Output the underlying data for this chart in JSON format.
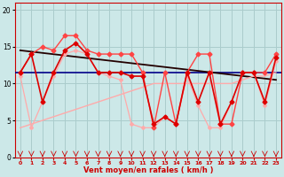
{
  "xlabel": "Vent moyen/en rafales ( km/h )",
  "background_color": "#cce8e8",
  "grid_color": "#aacccc",
  "xlim": [
    -0.5,
    23.5
  ],
  "ylim": [
    0,
    21
  ],
  "yticks": [
    0,
    5,
    10,
    15,
    20
  ],
  "xticks": [
    0,
    1,
    2,
    3,
    4,
    5,
    6,
    7,
    8,
    9,
    10,
    11,
    12,
    13,
    14,
    15,
    16,
    17,
    18,
    19,
    20,
    21,
    22,
    23
  ],
  "x": [
    0,
    1,
    2,
    3,
    4,
    5,
    6,
    7,
    8,
    9,
    10,
    11,
    12,
    13,
    14,
    15,
    16,
    17,
    18,
    19,
    20,
    21,
    22,
    23
  ],
  "wind_gust": [
    11.5,
    14.0,
    15.0,
    14.5,
    16.5,
    16.5,
    14.5,
    14.0,
    14.0,
    14.0,
    14.0,
    11.5,
    4.0,
    11.5,
    4.5,
    11.5,
    14.0,
    14.0,
    4.5,
    4.5,
    11.5,
    11.5,
    11.5,
    14.0
  ],
  "wind_avg": [
    11.5,
    14.0,
    7.5,
    11.5,
    14.5,
    15.5,
    14.0,
    11.5,
    11.5,
    11.5,
    11.0,
    11.0,
    4.5,
    5.5,
    4.5,
    11.5,
    7.5,
    11.5,
    4.5,
    7.5,
    11.5,
    11.5,
    7.5,
    13.5
  ],
  "wind_min": [
    11.0,
    4.0,
    7.5,
    11.0,
    14.0,
    14.5,
    14.0,
    11.5,
    11.0,
    10.5,
    4.5,
    4.0,
    4.0,
    5.5,
    4.5,
    11.0,
    7.0,
    4.0,
    4.0,
    7.5,
    11.5,
    11.5,
    7.0,
    13.0
  ],
  "diagonal_up": [
    4.0,
    4.5,
    5.0,
    5.5,
    6.0,
    6.5,
    7.0,
    7.5,
    8.0,
    8.5,
    9.0,
    9.5,
    10.0,
    10.0,
    10.0,
    10.0,
    10.0,
    10.0,
    10.0,
    10.0,
    10.5,
    11.0,
    11.0,
    11.5
  ],
  "trend_x": [
    0,
    23
  ],
  "trend_y": [
    14.5,
    10.5
  ],
  "horiz_line_y": 11.5,
  "color_avg": "#dd0000",
  "color_gust": "#dd0000",
  "color_min": "#ffaaaa",
  "color_diagonal": "#ffaaaa",
  "color_trend": "#220000",
  "color_horiz": "#000088",
  "marker_avg": "D",
  "marker_gust": "D"
}
